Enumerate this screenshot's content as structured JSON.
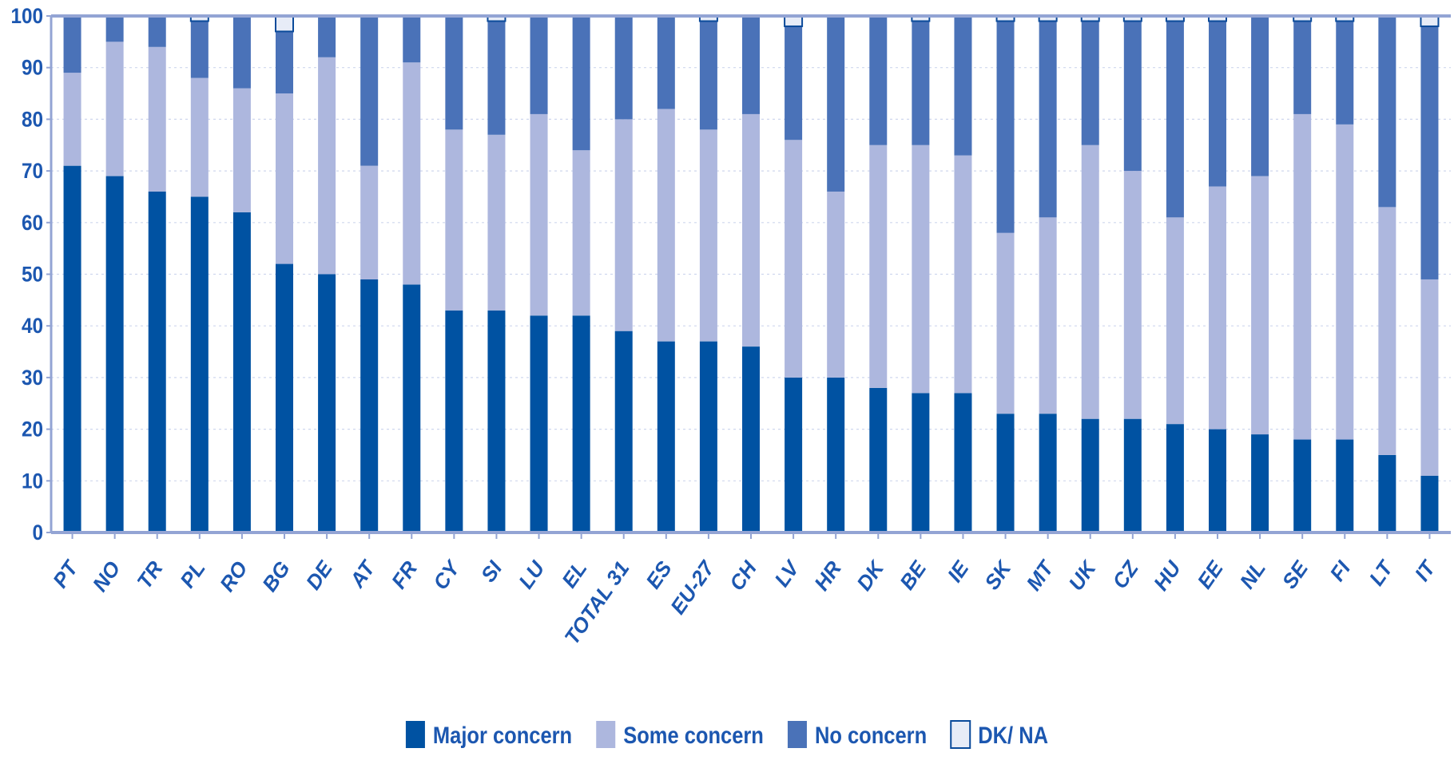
{
  "chart_data": {
    "type": "bar",
    "stacked": true,
    "title": "",
    "xlabel": "",
    "ylabel": "",
    "ylim": [
      0,
      100
    ],
    "yticks": [
      0,
      10,
      20,
      30,
      40,
      50,
      60,
      70,
      80,
      90,
      100
    ],
    "grid": true,
    "legend_position": "bottom",
    "categories": [
      "PT",
      "NO",
      "TR",
      "PL",
      "RO",
      "BG",
      "DE",
      "AT",
      "FR",
      "CY",
      "SI",
      "LU",
      "EL",
      "TOTAL 31",
      "ES",
      "EU-27",
      "CH",
      "LV",
      "HR",
      "DK",
      "BE",
      "IE",
      "SK",
      "MT",
      "UK",
      "CZ",
      "HU",
      "EE",
      "NL",
      "SE",
      "FI",
      "LT",
      "IT"
    ],
    "series": [
      {
        "name": "Major concern",
        "color": "#0052a2",
        "values": [
          71,
          69,
          66,
          65,
          62,
          52,
          50,
          49,
          48,
          43,
          43,
          42,
          42,
          39,
          37,
          37,
          36,
          30,
          30,
          28,
          27,
          27,
          23,
          23,
          22,
          22,
          21,
          20,
          19,
          18,
          18,
          15,
          11
        ]
      },
      {
        "name": "Some concern",
        "color": "#adb7de",
        "values": [
          18,
          26,
          28,
          23,
          24,
          33,
          42,
          22,
          43,
          35,
          34,
          39,
          32,
          41,
          45,
          41,
          45,
          46,
          36,
          47,
          48,
          46,
          35,
          38,
          53,
          48,
          40,
          47,
          50,
          63,
          61,
          48,
          38
        ]
      },
      {
        "name": "No concern",
        "color": "#4a72b8",
        "values": [
          11,
          5,
          6,
          11,
          14,
          12,
          8,
          29,
          9,
          22,
          22,
          19,
          26,
          20,
          18,
          21,
          19,
          22,
          34,
          25,
          24,
          27,
          41,
          38,
          24,
          29,
          38,
          32,
          31,
          18,
          20,
          37,
          49
        ]
      },
      {
        "name": "DK/ NA",
        "color": "#e7ecf7",
        "values": [
          0,
          0,
          0,
          1,
          0,
          3,
          0,
          0,
          0,
          0,
          1,
          0,
          0,
          0,
          0,
          1,
          0,
          2,
          0,
          0,
          1,
          0,
          1,
          1,
          1,
          1,
          1,
          1,
          0,
          1,
          1,
          0,
          2
        ]
      }
    ]
  },
  "style": {
    "axis_color": "#93a4d4",
    "grid_color": "#cfd7ee",
    "label_color": "#1c57b0",
    "dk_border_color": "#0a4a9a"
  }
}
